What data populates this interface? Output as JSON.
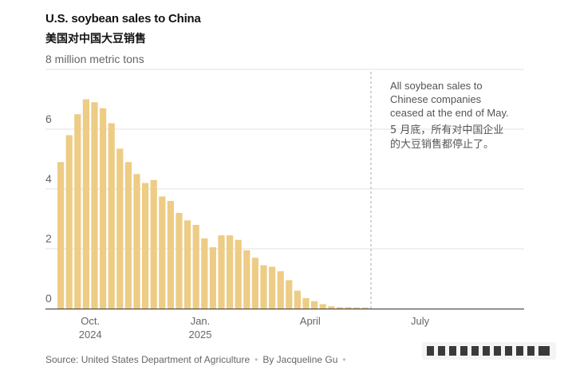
{
  "header": {
    "title": "U.S. soybean sales to China",
    "subtitle": "美国对中国大豆销售"
  },
  "chart_data": {
    "type": "bar",
    "title": "U.S. soybean sales to China",
    "subtitle": "美国对中国大豆销售",
    "ylabel": "million metric tons",
    "unit_label": "8 million metric tons",
    "ylim": [
      0,
      8
    ],
    "yticks": [
      0,
      2,
      4,
      6,
      8
    ],
    "ytick_labels": [
      "0",
      "2",
      "4",
      "6",
      "8 million metric tons"
    ],
    "grid": true,
    "bar_color": "#edcc85",
    "values": [
      4.9,
      5.8,
      6.5,
      7.0,
      6.9,
      6.7,
      6.2,
      5.35,
      4.9,
      4.5,
      4.2,
      4.3,
      3.75,
      3.6,
      3.2,
      2.95,
      2.8,
      2.35,
      2.05,
      2.45,
      2.45,
      2.3,
      1.95,
      1.7,
      1.45,
      1.4,
      1.25,
      0.95,
      0.6,
      0.35,
      0.25,
      0.15,
      0.08,
      0.05,
      0.05,
      0.04,
      0.04
    ],
    "x_tick_labels": [
      {
        "line1": "Oct.",
        "line2": "2024",
        "bar_index": 3.5
      },
      {
        "line1": "Jan.",
        "line2": "2025",
        "bar_index": 16.5
      },
      {
        "line1": "April",
        "line2": "",
        "bar_index": 29.5
      },
      {
        "line1": "July",
        "line2": "",
        "bar_index": 42.5
      }
    ],
    "annotation": {
      "en": [
        "All soybean sales to",
        "Chinese companies",
        "ceased at the end of May."
      ],
      "zh": [
        "5 月底，所有对中国企业",
        "的大豆销售都停止了。"
      ],
      "line_after_bar_index": 36.5
    }
  },
  "footer": {
    "source": "Source: United States Department of Agriculture",
    "byline": "By Jacqueline Gu"
  },
  "colors": {
    "bar": "#edcc85",
    "grid": "#e0e0e0",
    "axis": "#333333",
    "annotation_line": "#aaaaaa"
  }
}
